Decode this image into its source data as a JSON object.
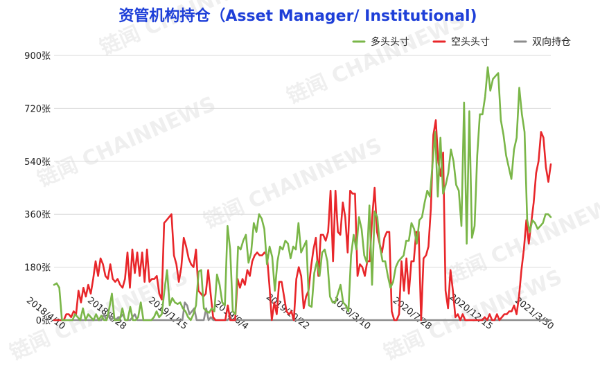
{
  "chart_data": {
    "type": "line",
    "title": "资管机构持仓（Asset Manager/ Institutional)",
    "xlabel": "",
    "ylabel": "",
    "ylim": [
      0,
      900
    ],
    "yticks": [
      "0张",
      "180张",
      "360张",
      "540张",
      "720张",
      "900张"
    ],
    "x_ticks": [
      "2018/4/10",
      "2018/8/28",
      "2019/1/15",
      "2019/6/4",
      "2019/10/22",
      "2020/3/10",
      "2020/7/28",
      "2020/12/15",
      "2021/3/30"
    ],
    "grid": true,
    "legend_position": "top-right",
    "watermark": "链闻 CHAINNEWS",
    "series": [
      {
        "name": "多头头寸",
        "color": "#7ab648",
        "values": [
          120,
          125,
          110,
          0,
          0,
          0,
          0,
          0,
          20,
          10,
          0,
          40,
          0,
          20,
          10,
          0,
          20,
          0,
          15,
          0,
          0,
          40,
          90,
          0,
          0,
          0,
          40,
          0,
          0,
          45,
          0,
          0,
          10,
          60,
          0,
          0,
          0,
          0,
          10,
          30,
          10,
          20,
          100,
          170,
          50,
          75,
          60,
          55,
          60,
          40,
          30,
          10,
          0,
          20,
          50,
          165,
          170,
          40,
          30,
          25,
          40,
          30,
          155,
          120,
          60,
          50,
          320,
          240,
          30,
          20,
          250,
          240,
          270,
          290,
          195,
          230,
          330,
          300,
          360,
          345,
          310,
          190,
          250,
          215,
          100,
          200,
          250,
          240,
          270,
          260,
          210,
          250,
          240,
          330,
          230,
          250,
          270,
          50,
          45,
          160,
          200,
          150,
          230,
          240,
          200,
          80,
          60,
          60,
          90,
          120,
          60,
          50,
          30,
          220,
          290,
          240,
          350,
          310,
          220,
          195,
          390,
          120,
          370,
          350,
          250,
          200,
          200,
          150,
          110,
          130,
          180,
          200,
          210,
          220,
          270,
          270,
          330,
          310,
          260,
          340,
          350,
          400,
          440,
          420,
          530,
          640,
          420,
          620,
          430,
          460,
          500,
          580,
          540,
          460,
          440,
          320,
          740,
          260,
          710,
          280,
          320,
          560,
          700,
          700,
          760,
          860,
          780,
          820,
          830,
          840,
          680,
          630,
          560,
          520,
          480,
          580,
          620,
          790,
          700,
          640,
          340,
          300,
          340,
          330,
          310,
          320,
          330,
          360,
          360,
          350
        ]
      },
      {
        "name": "空头头寸",
        "color": "#e8262a",
        "values": [
          0,
          0,
          0,
          0,
          0,
          20,
          20,
          10,
          30,
          20,
          100,
          60,
          110,
          80,
          120,
          90,
          140,
          200,
          150,
          210,
          190,
          150,
          140,
          190,
          140,
          130,
          140,
          120,
          110,
          140,
          230,
          110,
          240,
          160,
          230,
          150,
          230,
          130,
          240,
          130,
          140,
          140,
          150,
          90,
          70,
          330,
          340,
          350,
          360,
          220,
          190,
          130,
          180,
          280,
          250,
          210,
          190,
          180,
          240,
          100,
          90,
          80,
          90,
          170,
          90,
          10,
          0,
          0,
          0,
          0,
          0,
          50,
          0,
          0,
          0,
          140,
          110,
          140,
          120,
          170,
          150,
          200,
          220,
          230,
          220,
          220,
          230,
          220,
          120,
          0,
          60,
          20,
          130,
          130,
          80,
          30,
          20,
          30,
          0,
          140,
          180,
          150,
          40,
          80,
          100,
          180,
          240,
          280,
          150,
          290,
          290,
          270,
          300,
          440,
          200,
          440,
          300,
          290,
          400,
          350,
          230,
          440,
          430,
          430,
          150,
          190,
          180,
          150,
          200,
          200,
          350,
          450,
          300,
          260,
          230,
          280,
          300,
          300,
          30,
          0,
          0,
          20,
          200,
          100,
          210,
          90,
          200,
          200,
          300,
          300,
          0,
          210,
          220,
          250,
          380,
          630,
          680,
          540,
          490,
          570,
          100,
          40,
          170,
          100,
          10,
          20,
          0,
          20,
          0,
          0,
          0,
          0,
          0,
          0,
          0,
          0,
          10,
          0,
          20,
          0,
          0,
          20,
          0,
          10,
          20,
          20,
          30,
          30,
          50,
          20,
          80,
          170,
          240,
          340,
          260,
          330,
          400,
          500,
          540,
          640,
          620,
          520,
          470,
          530
        ]
      },
      {
        "name": "双向持仓",
        "color": "#8c8c8c",
        "values": [
          0,
          0,
          0,
          0,
          0,
          0,
          0,
          0,
          0,
          0,
          0,
          0,
          0,
          0,
          0,
          0,
          0,
          0,
          0,
          0,
          0,
          20,
          0,
          20,
          0,
          10,
          0,
          10,
          10,
          20,
          0,
          0,
          0,
          10,
          20,
          0,
          0,
          0,
          0,
          0,
          0,
          0,
          0,
          0,
          0,
          0,
          0,
          0,
          0,
          0,
          0,
          0,
          0,
          0,
          0,
          60,
          50,
          20,
          30,
          40,
          0,
          0,
          0,
          0,
          40,
          0,
          10,
          0,
          0,
          0,
          0,
          0,
          0,
          0,
          10,
          0,
          0,
          0,
          0,
          0,
          0,
          0,
          0,
          0,
          0,
          0,
          0,
          0,
          0,
          0,
          0,
          0,
          0,
          0,
          0,
          0,
          0,
          0,
          0,
          0,
          0,
          0,
          0,
          0,
          0,
          0,
          0,
          0,
          0,
          0,
          0,
          0,
          0,
          0,
          0,
          0,
          0,
          0,
          0,
          0,
          0,
          0,
          0,
          0,
          0,
          0,
          0,
          0,
          0,
          0,
          0,
          0,
          0,
          0,
          0,
          0,
          0,
          0,
          0,
          0,
          0,
          0,
          0,
          0,
          0,
          0,
          0,
          0,
          0,
          0,
          0,
          0,
          0,
          0,
          0,
          0,
          0,
          0,
          0,
          0,
          0,
          0,
          0,
          0,
          0,
          0,
          0,
          0,
          0,
          0,
          0,
          0,
          0,
          0,
          0,
          0,
          0,
          0,
          0,
          0,
          0,
          0,
          0,
          0,
          0,
          0,
          0,
          0,
          0,
          0,
          0,
          0,
          0,
          0,
          0,
          0,
          0,
          0,
          0,
          0,
          0,
          0,
          0,
          0,
          0,
          0,
          0,
          0,
          0,
          0
        ]
      }
    ]
  }
}
